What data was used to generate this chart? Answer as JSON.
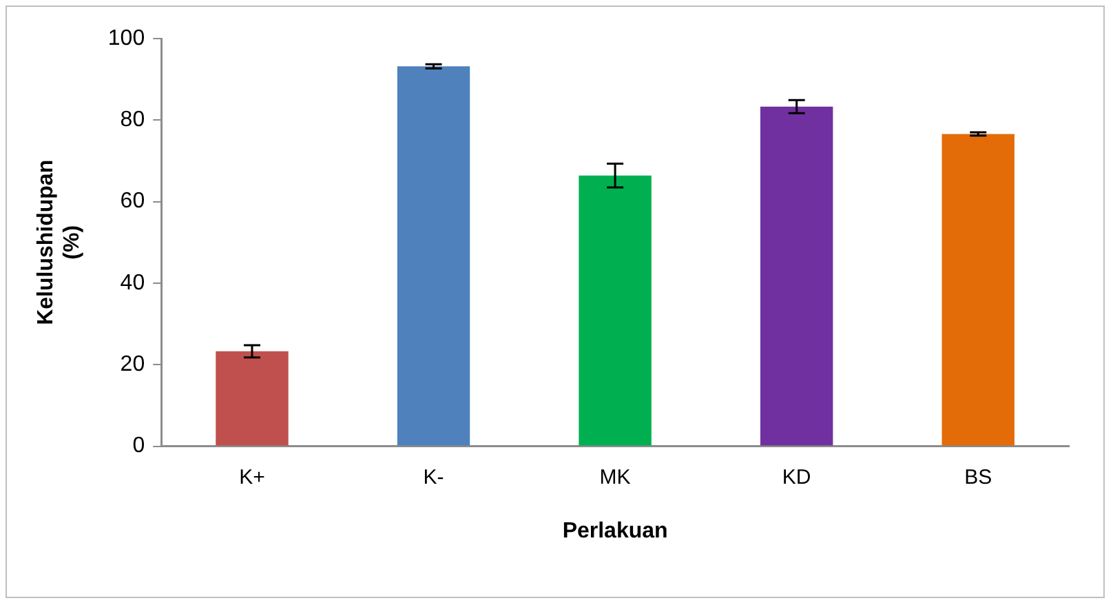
{
  "chart_data": {
    "type": "bar",
    "xlabel": "Perlakuan",
    "ylabel": "Kelulushidupan\n(%)",
    "categories": [
      "K+",
      "K-",
      "MK",
      "KD",
      "BS"
    ],
    "values": [
      23.3,
      93.2,
      66.4,
      83.3,
      76.6
    ],
    "errors": [
      1.5,
      0.5,
      2.9,
      1.6,
      0.4
    ],
    "colors": [
      "#c0504d",
      "#4f81bd",
      "#00b050",
      "#7030a0",
      "#e36c09"
    ],
    "ylim": [
      0,
      100
    ],
    "yticks": [
      0,
      20,
      40,
      60,
      80,
      100
    ],
    "grid": false,
    "legend": false
  }
}
